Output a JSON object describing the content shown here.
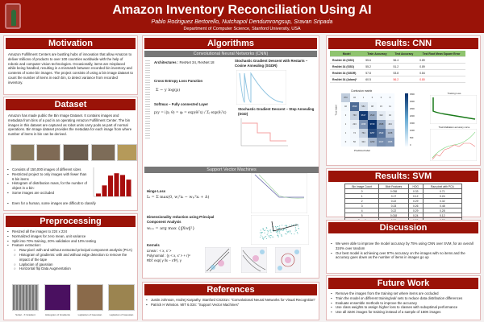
{
  "header": {
    "title": "Amazon Inventory Reconciliation Using AI",
    "authors": "Pablo Rodriguez Bertorello, Nutchapol Dendumrongsup, Sravan Sripada",
    "department": "Department of Computer Science, Stanford University, USA",
    "logo_letter": "S"
  },
  "motivation": {
    "title": "Motivation",
    "text": "Amazon Fulfillment Centers are bustling hubs of innovation that allow Amazon to deliver millions of products to over 100 countries worldwide with the help of robotic and computer vision technologies. Occasionally, items are misplaced while being handled, resulting in a mismatch between recorded bin inventory and contents of some bin images. The project consists of using a bin image dataset to count the number of items in each bin, to detect variance from recorded inventory."
  },
  "dataset": {
    "title": "Dataset",
    "text": "Amazon has made public the Bin Image Dataset. It contains images and metadata from bins of a pod in an operating Amazon Fulfillment Center. The bin images in this dataset are captured as robot units carry pods as part of normal operations. Bin Image dataset provides the metadata for each image from where number of items in bin can be derived.",
    "bullets": [
      "Consists of 150,000 images of different sizes",
      "Restricted project to only images with fewer than 6 bin items",
      "Histogram of distribution mass, for the number of object in a bin:",
      "Some images are occluded",
      "Even for a human, some images are difficult to classify"
    ],
    "histogram": [
      0.1,
      0.38,
      0.72,
      0.8,
      0.74,
      0.58
    ]
  },
  "preprocessing": {
    "title": "Preprocessing",
    "bullets": [
      "Resized all the images to 224 x 224",
      "Normalized images for zero mean, unit variance",
      "Split into 70% training, 20% validation and 10% testing",
      "Feature extraction:"
    ],
    "sub_bullets": [
      "Raw pixel: with and without extracted principal component analysis (PCA)",
      "Histogram of gradients: with and without edge detection to remove the impact of the tape",
      "Laplacian of gaussian",
      "Horizontal flip Data Augmentation"
    ],
    "captions": [
      "Sobel - X Gradient",
      "Histogram of Gradients",
      "Laplacian of Gaussian",
      "Laplacian of Gaussian"
    ]
  },
  "algorithms": {
    "title": "Algorithms",
    "cnn_label": "Convolutional Neural Networks (CNN)",
    "architectures_label": "Architectures :",
    "architectures": "ResNet 34, ResNet 18",
    "loss_label": "Cross Entropy Loss Function",
    "loss_formula": "Σ − y log(p)",
    "softmax_label": "Softmax – Fully connected Layer",
    "softmax_formula": "p(y = i|x; θ) = φᵢ = exp(θᵢᵀx) / Σⱼ exp(θⱼᵀx)",
    "sgdr_label": "Stochastic Gradient Descent with Restarts – Cosine Annealing (SGDR)",
    "sgd_label": "Stochastic Gradient Descent – Step Annealing (SGD)",
    "svm_label": "Support Vector Machines",
    "hinge_label": "Hinge Loss",
    "hinge_formula": "Lᵢ = Σ max(0, wⱼᵀxᵢ − wᵧᵢᵀxᵢ + Δ)",
    "pca_label": "Dimensionality reduction using Principal Component Analysis",
    "pca_formula": "w₍₁₎ = arg max {‖Xw‖²}",
    "kernels_label": "Kernels",
    "kernel_linear": "Linear : < x, x' >",
    "kernel_poly": "Polynomial : (γ < x, x' > + r)ᵈ",
    "kernel_rbf": "Rbf: exp( γ ‖x − x'‖²), γ"
  },
  "references": {
    "title": "References",
    "items": [
      "Justin Johnson, Andrej Karpathy. Stanford CS231n: \"Convolutional Neural Networks for Visual Recognition\"",
      "Patrick H Winston. MIT 6.034: \"Support Vector Machines\""
    ]
  },
  "results_cnn": {
    "title": "Results: CNN",
    "columns": [
      "Model",
      "Train Accuracy",
      "Test Accuracy",
      "Test Root Mean Square Error"
    ],
    "rows": [
      [
        "ResNet 18 (SGD)",
        "55.6",
        "56.4",
        "0.89"
      ],
      [
        "ResNet 34 (SGD)",
        "55.2",
        "51.2",
        "0.89"
      ],
      [
        "ResNet 34 (SGDR)",
        "57.8",
        "53.8",
        "0.84"
      ],
      [
        "ResNet 34 (Adam)*",
        "60.5",
        "56.2",
        "0.80"
      ]
    ],
    "confusion_title": "Confusion matrix",
    "true_label": "True label",
    "pred_label": "Predicted label",
    "confusion": [
      [
        870,
        32,
        1,
        0,
        0,
        0
      ],
      [
        40,
        2699,
        582,
        98,
        15,
        11
      ],
      [
        3,
        760,
        3617,
        1543,
        322,
        92
      ],
      [
        1,
        223,
        1938,
        3720,
        1668,
        404
      ],
      [
        1,
        74,
        764,
        3257,
        2543,
        1208
      ],
      [
        0,
        56,
        324,
        1290,
        2017,
        1905
      ]
    ],
    "colorbar_ticks": [
      "3500",
      "3000",
      "2500",
      "2000",
      "1500",
      "1000",
      "500",
      "0"
    ],
    "loss_title": "Training Loss",
    "acc_title": "Train/Validation accuracy curve",
    "highlight_color": "#e22222"
  },
  "results_svm": {
    "title": "Results: SVM",
    "columns": [
      "Bin Image Count",
      "Blob Features",
      "HOG",
      "Raw pixel with PCA"
    ],
    "rows": [
      [
        "0",
        "0.038",
        "0.33",
        "0.71"
      ],
      [
        "1",
        "0.17",
        "0.12",
        "0.24"
      ],
      [
        "2",
        "0.22",
        "0.29",
        "0.32"
      ],
      [
        "3",
        "0.33",
        "0.26",
        "0.48"
      ],
      [
        "4",
        "0.22",
        "0.29",
        "0.28"
      ],
      [
        "5",
        "0.018",
        "0.24",
        "0.12"
      ],
      [
        "Overall",
        "0.26",
        "0.26",
        "0.32"
      ]
    ]
  },
  "discussion": {
    "title": "Discussion",
    "bullets": [
      "We were able to improve the model accuracy by 75% using CNN over SVM, for an overall 324% over random",
      "Our best model is achieving over 97% accuracy on the images with no items and the accuracy goes down as the number of items in images go up"
    ]
  },
  "future_work": {
    "title": "Future Work",
    "bullets": [
      "Remove the images from the training set where items are occluded",
      "Train the model on different training/val/ sets to reduce data distribution differences",
      "Evaluate ensemble methods to improve the accuracy",
      "Use class weights to assign higher loss to classes with suboptimal performance",
      "Use all 324K images for training instead of a sample of 150K images"
    ]
  },
  "colors": {
    "primary": "#9a1308",
    "subheader": "#777777",
    "table_header": "#8fc46f"
  }
}
